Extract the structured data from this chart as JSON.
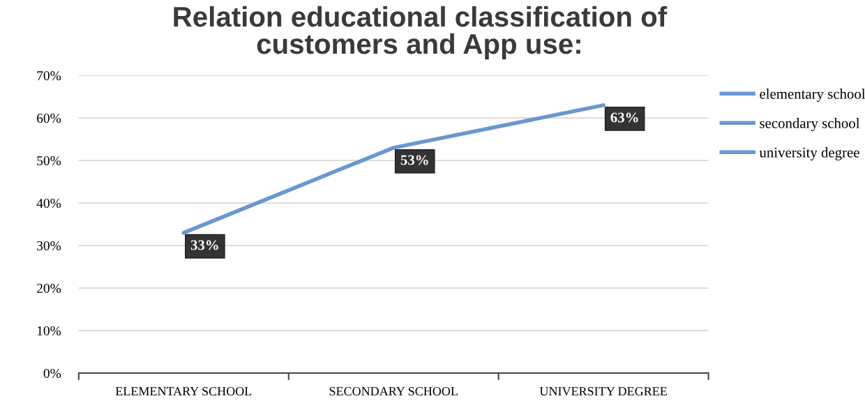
{
  "chart_data": {
    "type": "line",
    "title": "Relation educational classification of customers and App use:",
    "categories": [
      "ELEMENTARY SCHOOL",
      "SECONDARY SCHOOL",
      "UNIVERSITY DEGREE"
    ],
    "series": [
      {
        "color": "#6a97cf",
        "values": [
          33,
          53,
          63
        ],
        "value_labels": [
          "33%",
          "53%",
          "63%"
        ]
      },
      {
        "name": "elementary school",
        "color": "#6a97cf",
        "values": [
          null,
          null,
          null
        ]
      },
      {
        "name": "secondary school",
        "color": "#6a97cf",
        "values": [
          null,
          null,
          null
        ]
      },
      {
        "name": "university degree",
        "color": "#6a97cf",
        "values": [
          null,
          null,
          null
        ]
      }
    ],
    "ylim": [
      0,
      70
    ],
    "yticks": [
      {
        "value": 0,
        "label": "0%"
      },
      {
        "value": 10,
        "label": "10%"
      },
      {
        "value": 20,
        "label": "20%"
      },
      {
        "value": 30,
        "label": "30%"
      },
      {
        "value": 40,
        "label": "40%"
      },
      {
        "value": 50,
        "label": "50%"
      },
      {
        "value": 60,
        "label": "60%"
      },
      {
        "value": 70,
        "label": "70%"
      }
    ],
    "grid": "y",
    "legend": "right",
    "marker": "none",
    "line_style": "solid"
  }
}
